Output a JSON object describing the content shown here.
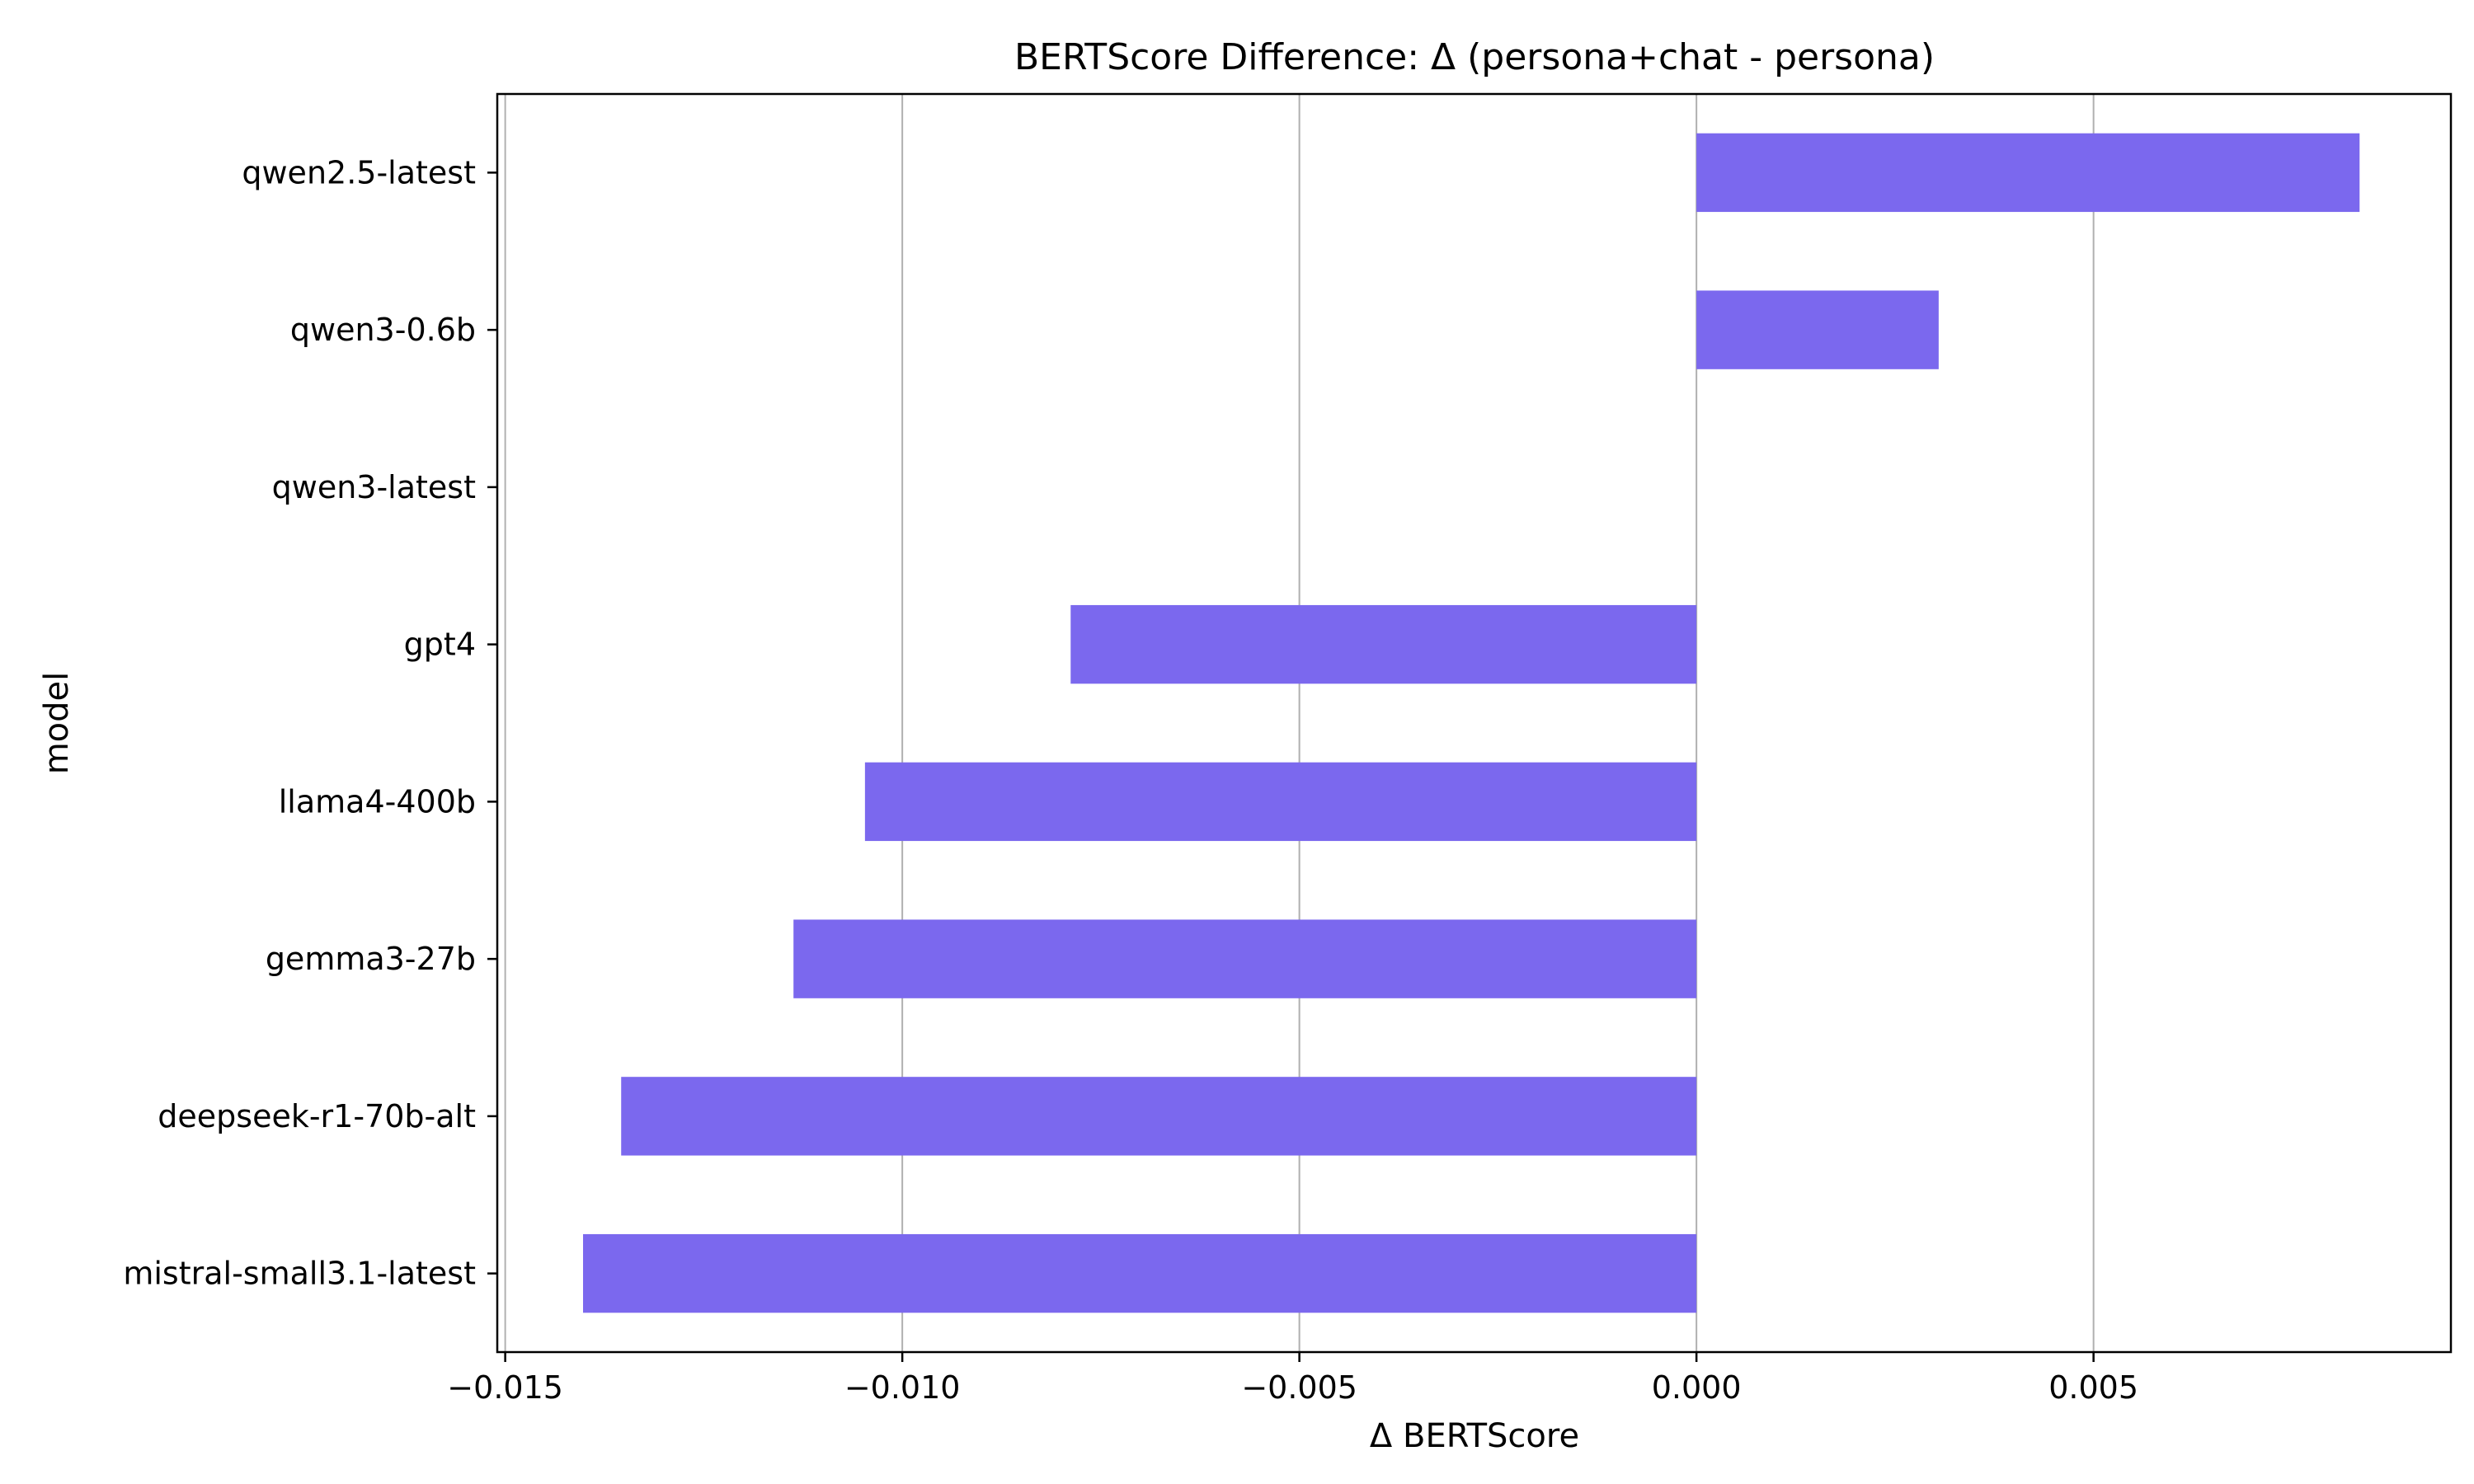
{
  "chart_data": {
    "type": "bar",
    "orientation": "horizontal",
    "title": "BERTScore Difference: Δ (persona+chat - persona)",
    "xlabel": "Δ BERTScore",
    "ylabel": "model",
    "categories": [
      "qwen2.5-latest",
      "qwen3-0.6b",
      "qwen3-latest",
      "gpt4",
      "llama4-400b",
      "gemma3-27b",
      "deepseek-r1-70b-alt",
      "mistral-small3.1-latest"
    ],
    "values": [
      0.00835,
      0.00305,
      0.0,
      -0.00788,
      -0.01047,
      -0.01137,
      -0.01354,
      -0.01402
    ],
    "xlim": [
      -0.0151,
      0.0095
    ],
    "xticks": [
      -0.015,
      -0.01,
      -0.005,
      0.0,
      0.005
    ],
    "xtick_labels": [
      "−0.015",
      "−0.010",
      "−0.005",
      "0.000",
      "0.005"
    ],
    "grid": "vertical",
    "colors": {
      "bar": "#7b68ee",
      "grid": "#b0b0b0",
      "axes": "#000000"
    }
  }
}
